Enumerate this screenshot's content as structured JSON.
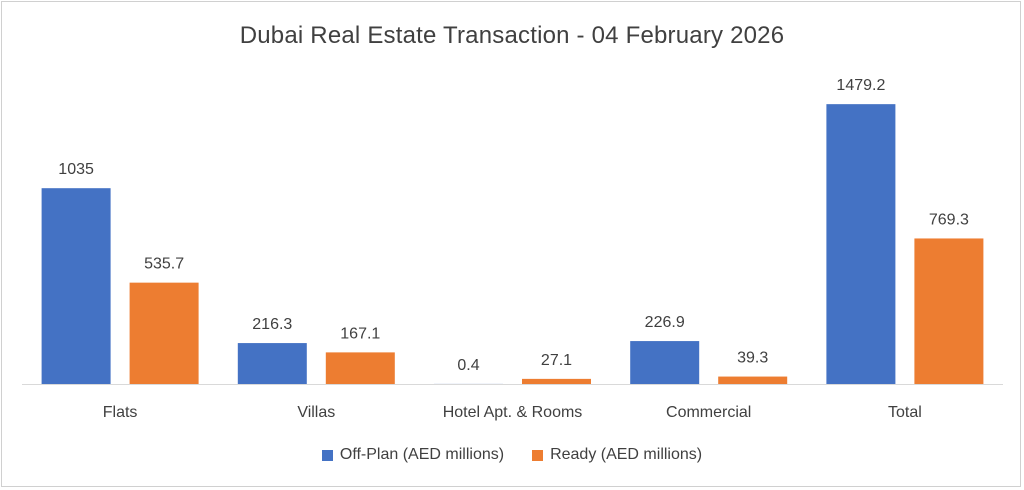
{
  "chart_data": {
    "type": "bar",
    "title": "Dubai Real Estate Transaction - 04 February 2026",
    "xlabel": "",
    "ylabel": "",
    "categories": [
      "Flats",
      "Villas",
      "Hotel Apt. & Rooms",
      "Commercial",
      "Total"
    ],
    "series": [
      {
        "name": "Off-Plan (AED millions)",
        "color": "#4472C4",
        "values": [
          1035,
          216.3,
          0.4,
          226.9,
          1479.2
        ],
        "labels": [
          "1035",
          "216.3",
          "0.4",
          "226.9",
          "1479.2"
        ]
      },
      {
        "name": "Ready (AED millions)",
        "color": "#ED7D31",
        "values": [
          535.7,
          167.1,
          27.1,
          39.3,
          769.3
        ],
        "labels": [
          "535.7",
          "167.1",
          "27.1",
          "39.3",
          "769.3"
        ]
      }
    ],
    "ylim": [
      0,
      1480
    ],
    "grid": false,
    "legend_position": "bottom"
  }
}
